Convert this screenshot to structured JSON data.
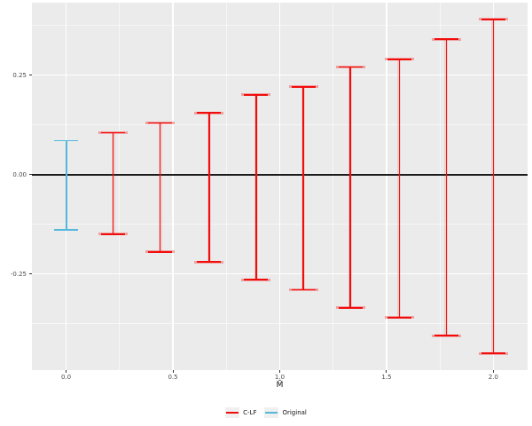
{
  "chart_data": {
    "type": "errorbar",
    "title": "",
    "xlabel": "M̄",
    "ylabel": "",
    "xlim": [
      -0.16,
      2.16
    ],
    "ylim": [
      -0.492,
      0.432
    ],
    "grid": true,
    "legend_position": "bottom",
    "hline": 0,
    "x_axis": {
      "major_ticks": [
        0.0,
        0.5,
        1.0,
        1.5,
        2.0
      ],
      "tick_labels": [
        "0.0",
        "0.5",
        "1.0",
        "1.5",
        "2.0"
      ],
      "minor_ticks": [
        0.25,
        0.75,
        1.25,
        1.75
      ]
    },
    "y_axis": {
      "major_ticks": [
        0.25,
        0.0,
        -0.25
      ],
      "tick_labels": [
        "0.25",
        "0.00",
        "-0.25"
      ],
      "minor_ticks": [
        0.375,
        0.125,
        -0.125,
        -0.375
      ]
    },
    "series": [
      {
        "name": "C-LF",
        "color": "#F20D0D",
        "halo_color": "rgba(242,50,50,0.40)",
        "points": [
          {
            "x": 0.22,
            "ymin": -0.15,
            "ymax": 0.105
          },
          {
            "x": 0.44,
            "ymin": -0.195,
            "ymax": 0.13
          },
          {
            "x": 0.67,
            "ymin": -0.22,
            "ymax": 0.155
          },
          {
            "x": 0.89,
            "ymin": -0.265,
            "ymax": 0.2
          },
          {
            "x": 1.11,
            "ymin": -0.29,
            "ymax": 0.22
          },
          {
            "x": 1.33,
            "ymin": -0.335,
            "ymax": 0.27
          },
          {
            "x": 1.56,
            "ymin": -0.36,
            "ymax": 0.29
          },
          {
            "x": 1.78,
            "ymin": -0.405,
            "ymax": 0.34
          },
          {
            "x": 2.0,
            "ymin": -0.45,
            "ymax": 0.39
          }
        ]
      },
      {
        "name": "Original",
        "color": "#54B8DC",
        "halo_color": "rgba(84,184,220,0.0)",
        "points": [
          {
            "x": 0.0,
            "ymin": -0.14,
            "ymax": 0.085
          }
        ]
      }
    ]
  },
  "colors": {
    "panel_background": "#EBEBEB",
    "page_background": "#FFFFFF",
    "major_grid": "#FFFFFF",
    "zero_line": "#1C1C1C",
    "tick_text": "#4D4D4D",
    "legend_key_background": "#F0F0F0"
  },
  "legend": {
    "entries": [
      {
        "label": "C-LF",
        "color": "#F20D0D"
      },
      {
        "label": "Original",
        "color": "#54B8DC"
      }
    ]
  }
}
